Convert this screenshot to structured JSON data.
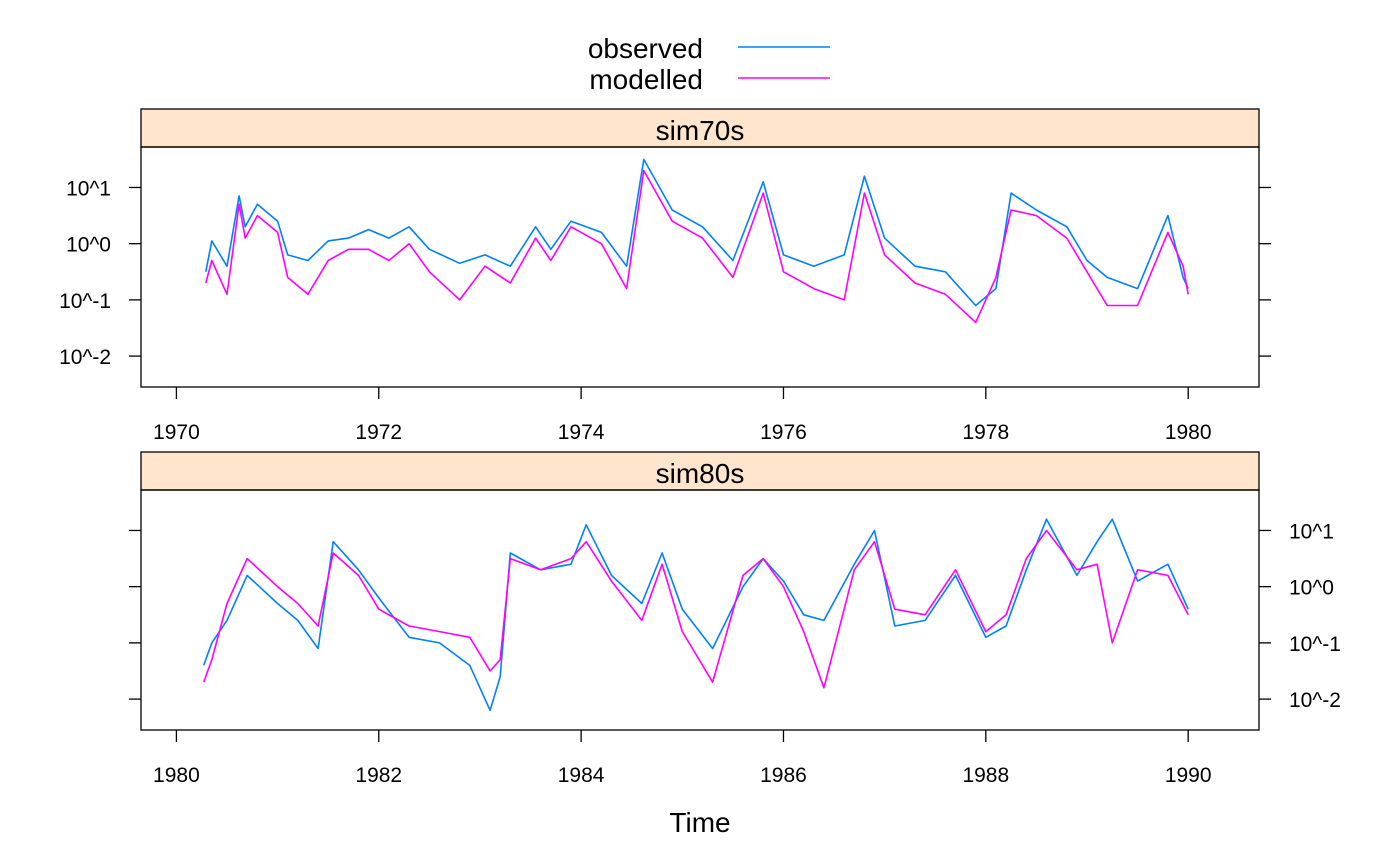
{
  "chart_data": [
    {
      "type": "line",
      "panel_title": "sim70s",
      "xlim": [
        1969.65,
        1980.7
      ],
      "ylim_log10": [
        -2.55,
        1.72
      ],
      "x_ticks": [
        1970,
        1972,
        1974,
        1976,
        1978,
        1980
      ],
      "x_tick_labels": [
        "1970",
        "1972",
        "1974",
        "1976",
        "1978",
        "1980"
      ],
      "y_ticks_log10": [
        1,
        0,
        -1,
        -2
      ],
      "y_tick_labels": [
        "10^1",
        "10^0",
        "10^-1",
        "10^-2"
      ],
      "y_label_side": "left",
      "series": [
        {
          "name": "observed",
          "color": "#0080ff",
          "x": [
            1970.29,
            1970.35,
            1970.5,
            1970.62,
            1970.68,
            1970.8,
            1971.0,
            1971.1,
            1971.3,
            1971.5,
            1971.7,
            1971.9,
            1972.1,
            1972.3,
            1972.5,
            1972.8,
            1973.05,
            1973.3,
            1973.55,
            1973.7,
            1973.9,
            1974.2,
            1974.45,
            1974.62,
            1974.9,
            1975.2,
            1975.5,
            1975.8,
            1976.0,
            1976.3,
            1976.6,
            1976.8,
            1977.0,
            1977.3,
            1977.6,
            1977.9,
            1978.1,
            1978.25,
            1978.5,
            1978.8,
            1979.0,
            1979.2,
            1979.5,
            1979.8,
            1979.95,
            1980.0
          ],
          "log10_y": [
            -0.5,
            0.05,
            -0.4,
            0.85,
            0.3,
            0.7,
            0.4,
            -0.2,
            -0.3,
            0.05,
            0.1,
            0.25,
            0.1,
            0.3,
            -0.1,
            -0.35,
            -0.2,
            -0.4,
            0.3,
            -0.1,
            0.4,
            0.2,
            -0.4,
            1.5,
            0.6,
            0.3,
            -0.3,
            1.1,
            -0.2,
            -0.4,
            -0.2,
            1.2,
            0.1,
            -0.4,
            -0.5,
            -1.1,
            -0.8,
            0.9,
            0.6,
            0.3,
            -0.3,
            -0.6,
            -0.8,
            0.5,
            -0.6,
            -0.8
          ]
        },
        {
          "name": "modelled",
          "color": "#ff00ff",
          "x": [
            1970.29,
            1970.35,
            1970.5,
            1970.62,
            1970.68,
            1970.8,
            1971.0,
            1971.1,
            1971.3,
            1971.5,
            1971.7,
            1971.9,
            1972.1,
            1972.3,
            1972.5,
            1972.8,
            1973.05,
            1973.3,
            1973.55,
            1973.7,
            1973.9,
            1974.2,
            1974.45,
            1974.62,
            1974.9,
            1975.2,
            1975.5,
            1975.8,
            1976.0,
            1976.3,
            1976.6,
            1976.8,
            1977.0,
            1977.3,
            1977.6,
            1977.9,
            1978.1,
            1978.25,
            1978.5,
            1978.8,
            1979.0,
            1979.2,
            1979.5,
            1979.8,
            1979.95,
            1980.0
          ],
          "log10_y": [
            -0.7,
            -0.3,
            -0.9,
            0.7,
            0.1,
            0.5,
            0.2,
            -0.6,
            -0.9,
            -0.3,
            -0.1,
            -0.1,
            -0.3,
            0.0,
            -0.5,
            -1.0,
            -0.4,
            -0.7,
            0.1,
            -0.3,
            0.3,
            0.0,
            -0.8,
            1.3,
            0.4,
            0.1,
            -0.6,
            0.9,
            -0.5,
            -0.8,
            -1.0,
            0.9,
            -0.2,
            -0.7,
            -0.9,
            -1.4,
            -0.6,
            0.6,
            0.5,
            0.1,
            -0.5,
            -1.1,
            -1.1,
            0.2,
            -0.4,
            -0.9
          ]
        }
      ]
    },
    {
      "type": "line",
      "panel_title": "sim80s",
      "xlim": [
        1979.65,
        1990.7
      ],
      "ylim_log10": [
        -2.55,
        1.72
      ],
      "x_ticks": [
        1980,
        1982,
        1984,
        1986,
        1988,
        1990
      ],
      "x_tick_labels": [
        "1980",
        "1982",
        "1984",
        "1986",
        "1988",
        "1990"
      ],
      "y_ticks_log10": [
        1,
        0,
        -1,
        -2
      ],
      "y_tick_labels": [
        "10^1",
        "10^0",
        "10^-1",
        "10^-2"
      ],
      "y_label_side": "right",
      "series": [
        {
          "name": "observed",
          "color": "#0080ff",
          "x": [
            1980.27,
            1980.35,
            1980.5,
            1980.7,
            1981.0,
            1981.2,
            1981.4,
            1981.55,
            1981.8,
            1982.0,
            1982.3,
            1982.6,
            1982.9,
            1983.1,
            1983.2,
            1983.3,
            1983.6,
            1983.9,
            1984.05,
            1984.3,
            1984.6,
            1984.8,
            1985.0,
            1985.3,
            1985.6,
            1985.8,
            1986.0,
            1986.2,
            1986.4,
            1986.7,
            1986.9,
            1987.1,
            1987.4,
            1987.7,
            1988.0,
            1988.2,
            1988.4,
            1988.6,
            1988.9,
            1989.1,
            1989.25,
            1989.5,
            1989.8,
            1990.0
          ],
          "log10_y": [
            -1.4,
            -1.0,
            -0.6,
            0.2,
            -0.3,
            -0.6,
            -1.1,
            0.8,
            0.3,
            -0.2,
            -0.9,
            -1.0,
            -1.4,
            -2.2,
            -1.6,
            0.6,
            0.3,
            0.4,
            1.1,
            0.2,
            -0.3,
            0.6,
            -0.4,
            -1.1,
            0.0,
            0.5,
            0.1,
            -0.5,
            -0.6,
            0.4,
            1.0,
            -0.7,
            -0.6,
            0.2,
            -0.9,
            -0.7,
            0.3,
            1.2,
            0.2,
            0.8,
            1.2,
            0.1,
            0.4,
            -0.4
          ]
        },
        {
          "name": "modelled",
          "color": "#ff00ff",
          "x": [
            1980.27,
            1980.35,
            1980.5,
            1980.7,
            1981.0,
            1981.2,
            1981.4,
            1981.55,
            1981.8,
            1982.0,
            1982.3,
            1982.6,
            1982.9,
            1983.1,
            1983.2,
            1983.3,
            1983.6,
            1983.9,
            1984.05,
            1984.3,
            1984.6,
            1984.8,
            1985.0,
            1985.3,
            1985.6,
            1985.8,
            1986.0,
            1986.2,
            1986.4,
            1986.7,
            1986.9,
            1987.1,
            1987.4,
            1987.7,
            1988.0,
            1988.2,
            1988.4,
            1988.6,
            1988.9,
            1989.1,
            1989.25,
            1989.5,
            1989.8,
            1990.0
          ],
          "log10_y": [
            -1.7,
            -1.3,
            -0.3,
            0.5,
            0.0,
            -0.3,
            -0.7,
            0.6,
            0.2,
            -0.4,
            -0.7,
            -0.8,
            -0.9,
            -1.5,
            -1.3,
            0.5,
            0.3,
            0.5,
            0.8,
            0.1,
            -0.6,
            0.4,
            -0.8,
            -1.7,
            0.2,
            0.5,
            0.0,
            -0.8,
            -1.8,
            0.3,
            0.8,
            -0.4,
            -0.5,
            0.3,
            -0.8,
            -0.5,
            0.5,
            1.0,
            0.3,
            0.4,
            -1.0,
            0.3,
            0.2,
            -0.5
          ]
        }
      ]
    }
  ],
  "legend": {
    "placement": "top",
    "entries": [
      {
        "name": "observed",
        "color": "#0080ff"
      },
      {
        "name": "modelled",
        "color": "#ff00ff"
      }
    ]
  },
  "xlabel": "Time",
  "strip_color": "#ffe5cc"
}
